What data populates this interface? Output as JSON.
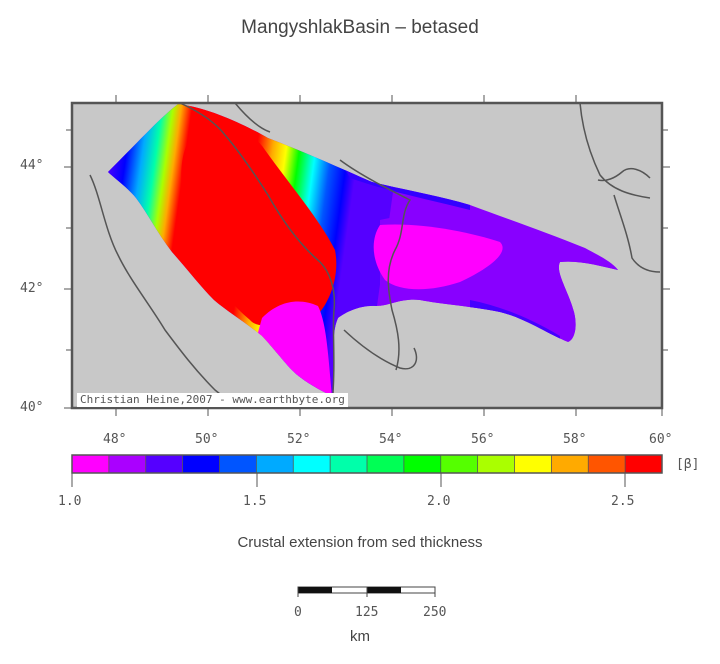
{
  "title": "MangyshlakBasin – betased",
  "credit": "Christian Heine,2007 - www.earthbyte.org",
  "lat_ticks": [
    "44°",
    "42°",
    "40°"
  ],
  "lon_ticks": [
    "48°",
    "50°",
    "52°",
    "54°",
    "56°",
    "58°",
    "60°"
  ],
  "colorbar": {
    "colors": [
      "#ff00ff",
      "#aa00ff",
      "#5500ff",
      "#0000ff",
      "#0055ff",
      "#00aaff",
      "#00ffff",
      "#00ffaa",
      "#00ff55",
      "#00ff00",
      "#55ff00",
      "#aaff00",
      "#ffff00",
      "#ffaa00",
      "#ff5500",
      "#ff0000"
    ],
    "ticks": [
      "1.0",
      "1.5",
      "2.0",
      "2.5"
    ],
    "unit": "[β]"
  },
  "caption": "Crustal extension from sed thickness",
  "scalebar": {
    "ticks": [
      "0",
      "125",
      "250"
    ],
    "unit": "km"
  }
}
